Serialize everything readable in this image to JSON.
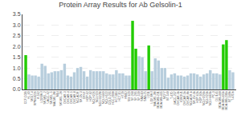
{
  "chart_data": {
    "type": "bar",
    "title": "Protein Array Results for Ab Gelsolin-1",
    "categories": [
      "CCF-CGB",
      "HL-60",
      "MOLT-4",
      "RPMI-8226",
      "K-562",
      "LOXIMVI",
      "SK-MEL-2",
      "UACC-62",
      "SK-MEL-5",
      "MALME-3M",
      "M14",
      "SK-MEL-28",
      "OVCAR-3",
      "OVCAR-4",
      "OVCAR-5",
      "OVCAR-8",
      "NCI-ADR",
      "SK-OV-3",
      "EKVX",
      "HOP-62",
      "HOP-92",
      "NCI-H226",
      "NCI-H23",
      "NCI-H322M",
      "NCI-H460",
      "NCI-H522",
      "COLO-205",
      "HCC-2998",
      "HCT-116",
      "HCT-15",
      "HT29",
      "KM12",
      "SW-620",
      "SF-268",
      "SF-295",
      "SF-539",
      "SNB-19",
      "SNB-75",
      "U251",
      "LOX IMVI",
      "MALME-3M",
      "MDA-MB-231",
      "MDA-MB-435",
      "MCF7",
      "BT-549",
      "T-47D",
      "UACC-257",
      "OVCAR-3b",
      "IGROV1",
      "OVCAR-5b",
      "OVCAR-8b",
      "NCI-ADR-b",
      "SK-OV-3b",
      "HOP-62b",
      "HOP-92b",
      "NCI-H226b",
      "NCI-H23b",
      "NCI-H460b",
      "PC-3",
      "DU-145",
      "MDA-MB-468",
      "MDA-MB-435b",
      "MDA-MB-231b",
      "BT-549b",
      "T-47Db"
    ],
    "values": [
      1.6,
      0.7,
      0.65,
      0.65,
      0.6,
      1.2,
      1.1,
      0.75,
      0.8,
      0.85,
      0.85,
      0.9,
      1.2,
      0.65,
      0.6,
      0.8,
      1.0,
      1.05,
      0.85,
      0.6,
      0.9,
      0.85,
      0.85,
      0.85,
      0.85,
      0.75,
      0.7,
      0.7,
      0.9,
      0.75,
      0.75,
      0.65,
      0.65,
      3.2,
      1.9,
      1.55,
      1.5,
      0.85,
      2.05,
      0.85,
      1.45,
      1.35,
      1.0,
      1.0,
      0.55,
      0.7,
      0.75,
      0.65,
      0.65,
      0.6,
      0.65,
      0.75,
      0.75,
      0.7,
      0.6,
      0.7,
      0.75,
      0.9,
      0.75,
      0.75,
      0.7,
      2.1,
      2.3,
      0.9,
      0.8
    ],
    "colors": [
      "#22cc00",
      "#b8cedd",
      "#b8cedd",
      "#b8cedd",
      "#b8cedd",
      "#b8cedd",
      "#b8cedd",
      "#b8cedd",
      "#b8cedd",
      "#b8cedd",
      "#b8cedd",
      "#b8cedd",
      "#b8cedd",
      "#b8cedd",
      "#b8cedd",
      "#b8cedd",
      "#b8cedd",
      "#b8cedd",
      "#b8cedd",
      "#b8cedd",
      "#b8cedd",
      "#b8cedd",
      "#b8cedd",
      "#b8cedd",
      "#b8cedd",
      "#b8cedd",
      "#b8cedd",
      "#b8cedd",
      "#b8cedd",
      "#b8cedd",
      "#b8cedd",
      "#b8cedd",
      "#b8cedd",
      "#22cc00",
      "#22cc00",
      "#b8cedd",
      "#b8cedd",
      "#b8cedd",
      "#22cc00",
      "#b8cedd",
      "#b8cedd",
      "#b8cedd",
      "#b8cedd",
      "#b8cedd",
      "#b8cedd",
      "#b8cedd",
      "#b8cedd",
      "#b8cedd",
      "#b8cedd",
      "#b8cedd",
      "#b8cedd",
      "#b8cedd",
      "#b8cedd",
      "#b8cedd",
      "#b8cedd",
      "#b8cedd",
      "#b8cedd",
      "#b8cedd",
      "#b8cedd",
      "#b8cedd",
      "#b8cedd",
      "#22cc00",
      "#22cc00",
      "#b8cedd",
      "#b8cedd"
    ],
    "ylim": [
      0,
      3.5
    ],
    "yticks": [
      {
        "value": 0,
        "label": "0.0"
      },
      0.5,
      {
        "value": 1,
        "label": "1.0"
      },
      1.5,
      {
        "value": 2,
        "label": "2.0"
      },
      2.5,
      {
        "value": 3,
        "label": "3.0"
      },
      3.5
    ],
    "grid": true
  }
}
